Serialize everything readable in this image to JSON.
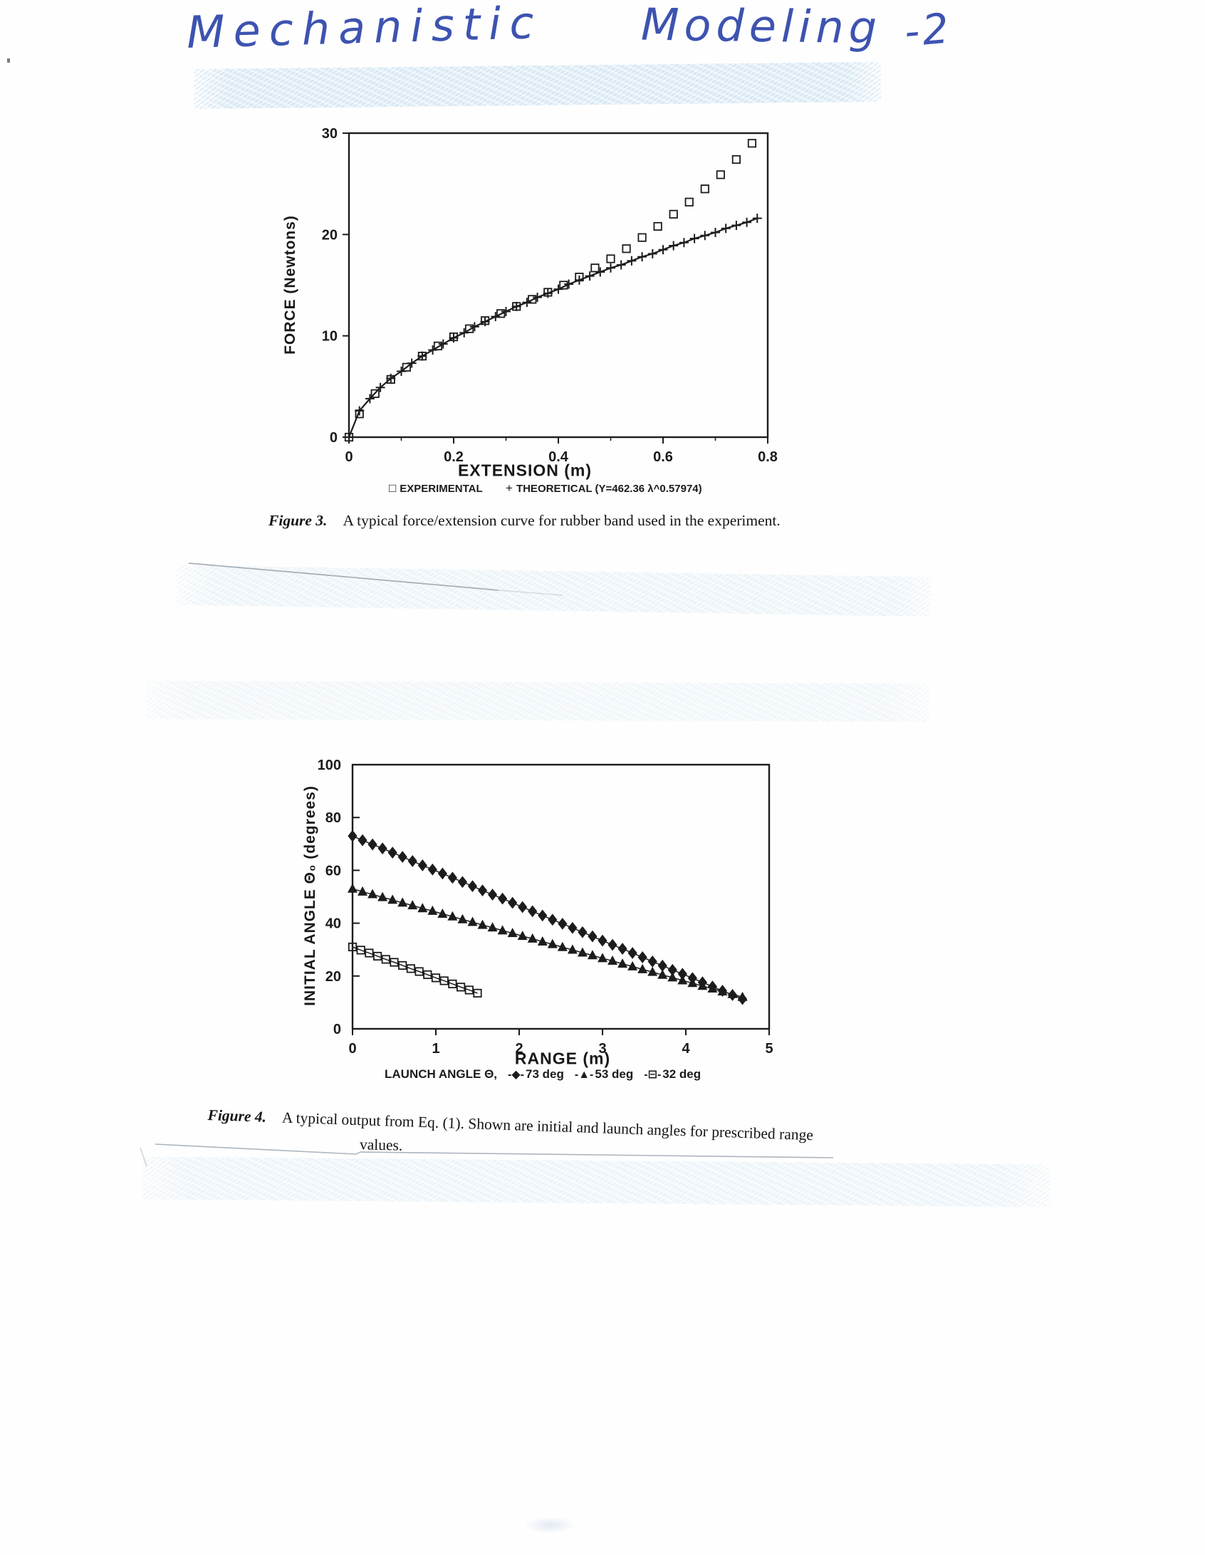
{
  "page": {
    "handwritten_title": {
      "word1": "Mechanistic",
      "word2": "Modeling",
      "word3": "-2"
    },
    "ink_color": "#3d53b0",
    "figure3": {
      "caption_label": "Figure 3.",
      "caption_text": "A typical force/extension curve for rubber band used in the experiment."
    },
    "figure4": {
      "caption_label": "Figure 4.",
      "caption_line1": "A typical output from Eq. (1). Shown are initial and launch angles for prescribed range",
      "caption_line2": "values.",
      "legend_label": "LAUNCH ANGLE Θ,"
    }
  },
  "chart_data": [
    {
      "type": "scatter",
      "title": "",
      "xlabel": "EXTENSION (m)",
      "ylabel": "FORCE (Newtons)",
      "xlim": [
        0,
        0.8
      ],
      "ylim": [
        0,
        30
      ],
      "grid": false,
      "legend_position": "below",
      "xticks": {
        "values": [
          0,
          0.2,
          0.4,
          0.6,
          0.8
        ],
        "labels": [
          "0",
          "0.2",
          "0.4",
          "0.6",
          "0.8"
        ],
        "minor": [
          0.1,
          0.3,
          0.5,
          0.7
        ]
      },
      "yticks": {
        "values": [
          0,
          10,
          20,
          30
        ],
        "labels": [
          "0",
          "10",
          "20",
          "30"
        ]
      },
      "legend": [
        {
          "glyph": "□",
          "label": "EXPERIMENTAL"
        },
        {
          "glyph": "+",
          "label": "THEORETICAL (Y=462.36 λ^0.57974)"
        }
      ],
      "series": [
        {
          "name": "EXPERIMENTAL",
          "marker": "osquare",
          "line": false,
          "x": [
            0,
            0.02,
            0.05,
            0.08,
            0.11,
            0.14,
            0.17,
            0.2,
            0.23,
            0.26,
            0.29,
            0.32,
            0.35,
            0.38,
            0.41,
            0.44,
            0.47,
            0.5,
            0.53,
            0.56,
            0.59,
            0.62,
            0.65,
            0.68,
            0.71,
            0.74,
            0.77
          ],
          "y": [
            0,
            2.3,
            4.3,
            5.7,
            6.9,
            8,
            9,
            9.9,
            10.7,
            11.5,
            12.2,
            12.9,
            13.6,
            14.3,
            15,
            15.8,
            16.7,
            17.6,
            18.6,
            19.7,
            20.8,
            22,
            23.2,
            24.5,
            25.9,
            27.4,
            29
          ]
        },
        {
          "name": "THEORETICAL (Y=462.36 λ^0.57974)",
          "marker": "plus",
          "line": true,
          "lw": 2.2,
          "x": [
            0,
            0.02,
            0.04,
            0.06,
            0.08,
            0.1,
            0.12,
            0.14,
            0.16,
            0.18,
            0.2,
            0.22,
            0.24,
            0.26,
            0.28,
            0.3,
            0.32,
            0.34,
            0.36,
            0.38,
            0.4,
            0.42,
            0.44,
            0.46,
            0.48,
            0.5,
            0.52,
            0.54,
            0.56,
            0.58,
            0.6,
            0.62,
            0.64,
            0.66,
            0.68,
            0.7,
            0.72,
            0.74,
            0.76,
            0.78
          ],
          "y": [
            0,
            2.6,
            3.8,
            4.9,
            5.8,
            6.5,
            7.3,
            8,
            8.6,
            9.2,
            9.8,
            10.3,
            10.9,
            11.4,
            11.9,
            12.4,
            12.9,
            13.3,
            13.8,
            14.2,
            14.6,
            15.1,
            15.5,
            15.9,
            16.3,
            16.7,
            17,
            17.4,
            17.8,
            18.1,
            18.5,
            18.9,
            19.2,
            19.6,
            19.9,
            20.2,
            20.6,
            20.9,
            21.2,
            21.6
          ]
        }
      ]
    },
    {
      "type": "scatter",
      "title": "",
      "xlabel": "RANGE (m)",
      "ylabel": "INITIAL ANGLE Θ₀  (degrees)",
      "xlim": [
        0,
        5
      ],
      "ylim": [
        0,
        100
      ],
      "grid": false,
      "legend_position": "below",
      "legend_label": "LAUNCH ANGLE Θ,",
      "xticks": {
        "values": [
          0,
          1,
          2,
          3,
          4,
          5
        ],
        "labels": [
          "0",
          "1",
          "2",
          "3",
          "4",
          "5"
        ],
        "minor": []
      },
      "yticks": {
        "values": [
          0,
          20,
          40,
          60,
          80,
          100
        ],
        "labels": [
          "0",
          "20",
          "40",
          "60",
          "80",
          "100"
        ]
      },
      "legend": [
        {
          "glyph": "-◆-",
          "label": "73 deg"
        },
        {
          "glyph": "-▲-",
          "label": "53 deg"
        },
        {
          "glyph": "-⊟-",
          "label": "32 deg"
        }
      ],
      "series": [
        {
          "name": "73 deg",
          "marker": "diamond",
          "line": true,
          "lw": 1.5,
          "x": [
            0,
            0.12,
            0.24,
            0.36,
            0.48,
            0.6,
            0.72,
            0.84,
            0.96,
            1.08,
            1.2,
            1.32,
            1.44,
            1.56,
            1.68,
            1.8,
            1.92,
            2.04,
            2.16,
            2.28,
            2.4,
            2.52,
            2.64,
            2.76,
            2.88,
            3,
            3.12,
            3.24,
            3.36,
            3.48,
            3.6,
            3.72,
            3.84,
            3.96,
            4.08,
            4.2,
            4.32,
            4.44,
            4.56,
            4.68
          ],
          "y": [
            73,
            71.4,
            69.8,
            68.3,
            66.7,
            65.1,
            63.5,
            61.9,
            60.3,
            58.8,
            57.2,
            55.6,
            54,
            52.4,
            50.8,
            49.3,
            47.7,
            46.1,
            44.5,
            42.9,
            41.3,
            39.8,
            38.2,
            36.6,
            35,
            33.4,
            31.8,
            30.3,
            28.7,
            27.1,
            25.5,
            23.9,
            22.3,
            20.8,
            19.2,
            17.6,
            16,
            14.4,
            12.8,
            11.3
          ]
        },
        {
          "name": "53 deg",
          "marker": "triangle",
          "line": true,
          "lw": 1.5,
          "x": [
            0,
            0.12,
            0.24,
            0.36,
            0.48,
            0.6,
            0.72,
            0.84,
            0.96,
            1.08,
            1.2,
            1.32,
            1.44,
            1.56,
            1.68,
            1.8,
            1.92,
            2.04,
            2.16,
            2.28,
            2.4,
            2.52,
            2.64,
            2.76,
            2.88,
            3,
            3.12,
            3.24,
            3.36,
            3.48,
            3.6,
            3.72,
            3.84,
            3.96,
            4.08,
            4.2,
            4.32,
            4.44,
            4.56,
            4.68
          ],
          "y": [
            53,
            51.9,
            50.9,
            49.8,
            48.8,
            47.7,
            46.7,
            45.6,
            44.6,
            43.5,
            42.5,
            41.4,
            40.4,
            39.3,
            38.3,
            37.2,
            36.2,
            35.1,
            34.1,
            33,
            32,
            30.9,
            29.9,
            28.8,
            27.8,
            26.7,
            25.7,
            24.6,
            23.6,
            22.5,
            21.5,
            20.4,
            19.4,
            18.3,
            17.3,
            16.2,
            15.2,
            14.1,
            13.1,
            12
          ]
        },
        {
          "name": "32 deg",
          "marker": "osquare",
          "line": true,
          "lw": 1.5,
          "x": [
            0,
            0.1,
            0.2,
            0.3,
            0.4,
            0.5,
            0.6,
            0.7,
            0.8,
            0.9,
            1,
            1.1,
            1.2,
            1.3,
            1.4,
            1.5
          ],
          "y": [
            31,
            29.8,
            28.7,
            27.5,
            26.3,
            25.2,
            24,
            22.8,
            21.7,
            20.5,
            19.3,
            18.2,
            17,
            15.8,
            14.7,
            13.5
          ]
        }
      ]
    }
  ]
}
